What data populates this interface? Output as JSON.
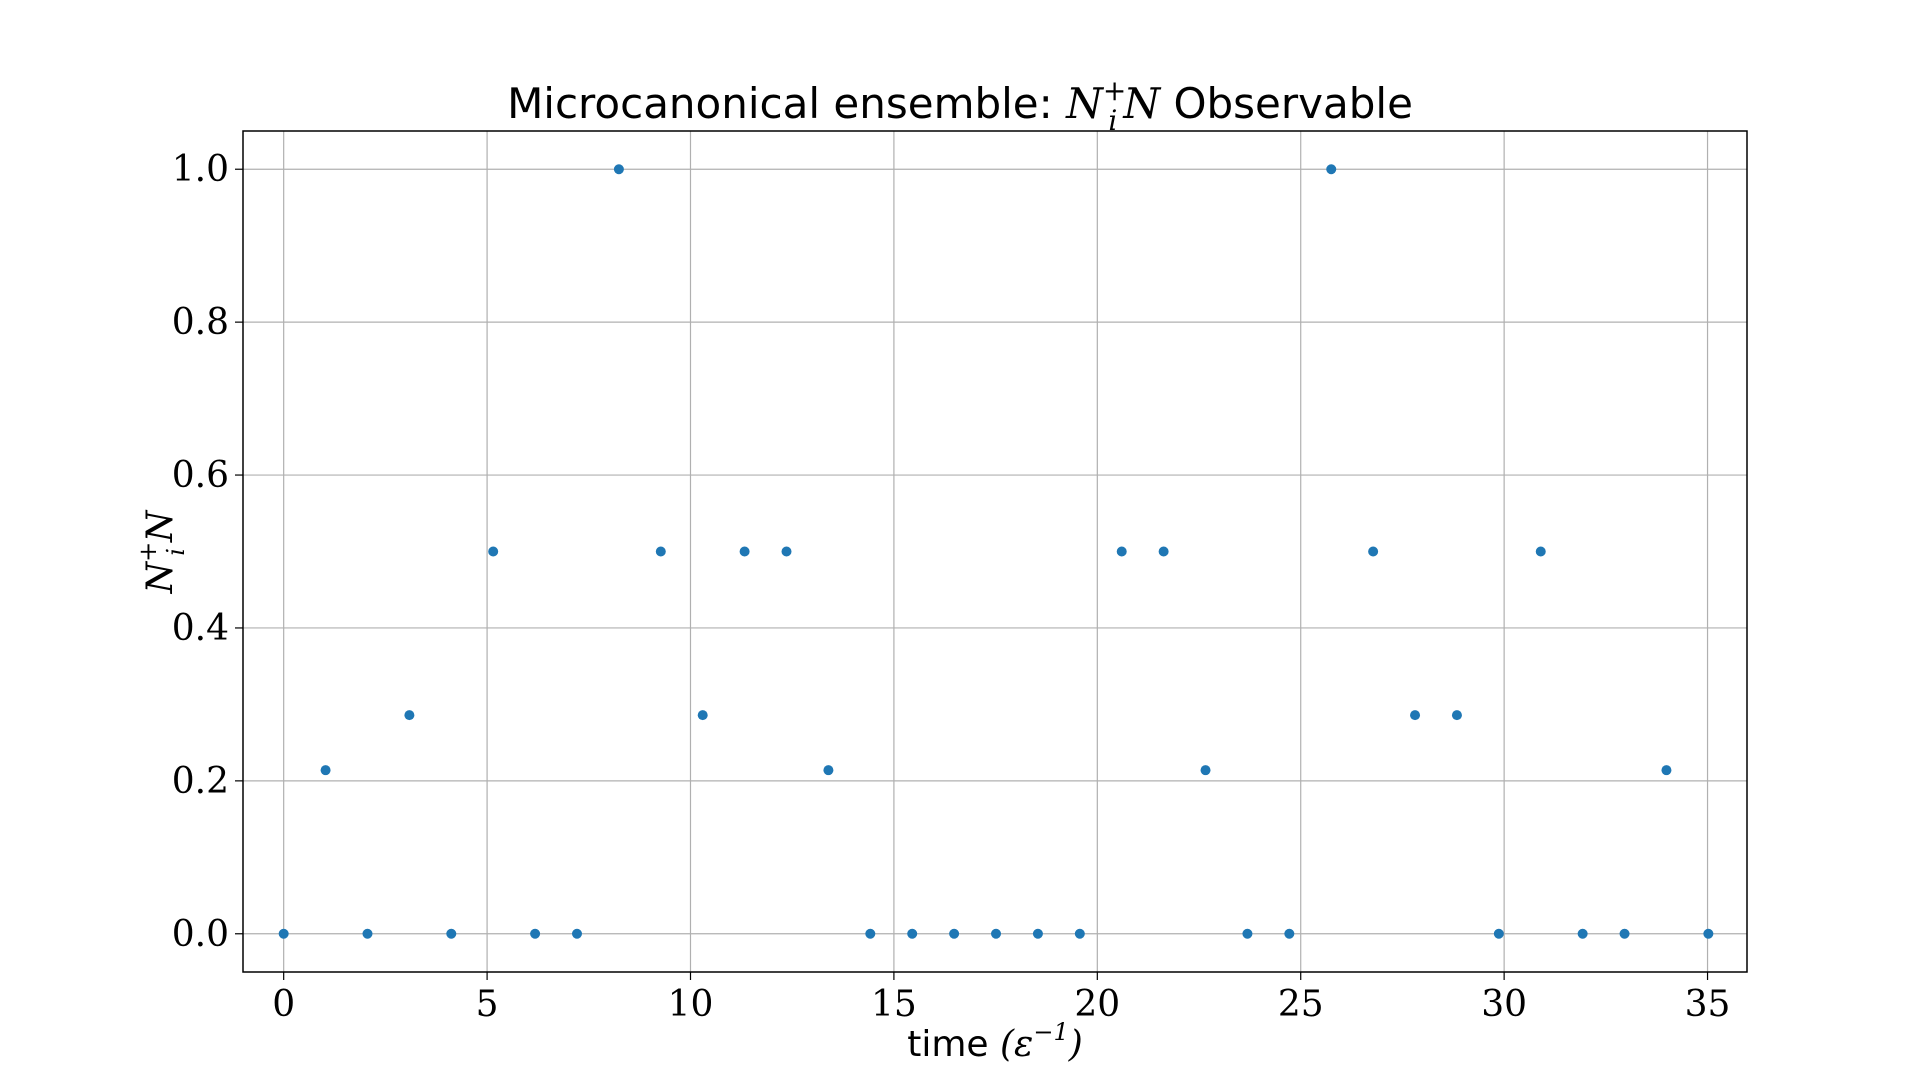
{
  "chart_data": {
    "type": "scatter",
    "title": {
      "prefix": "Microcanonical ensemble: ",
      "math_base": "N",
      "math_sub": "i",
      "math_sup": "+",
      "math_tail": "N",
      "suffix": " Observable"
    },
    "xlabel": {
      "text": "time ",
      "math_open": "(",
      "math_base": "ε",
      "math_sup": "−1",
      "math_close": ")"
    },
    "ylabel": {
      "math_base": "N",
      "math_sub": "i",
      "math_sup": "+",
      "math_tail": "N"
    },
    "xlim": [
      -1,
      35.97
    ],
    "ylim": [
      -0.05,
      1.05
    ],
    "xticks": [
      0,
      5,
      10,
      15,
      20,
      25,
      30,
      35
    ],
    "xtick_labels": [
      "0",
      "5",
      "10",
      "15",
      "20",
      "25",
      "30",
      "35"
    ],
    "yticks": [
      0.0,
      0.2,
      0.4,
      0.6,
      0.8,
      1.0
    ],
    "ytick_labels": [
      "0.0",
      "0.2",
      "0.4",
      "0.6",
      "0.8",
      "1.0"
    ],
    "grid": true,
    "marker_color": "#1f77b4",
    "series": [
      {
        "x": [
          0,
          1.03,
          2.06,
          3.09,
          4.12,
          5.15,
          6.18,
          7.21,
          8.24,
          9.27,
          10.3,
          11.33,
          12.36,
          13.39,
          14.42,
          15.45,
          16.48,
          17.51,
          18.54,
          19.57,
          20.6,
          21.63,
          22.66,
          23.69,
          24.72,
          25.75,
          26.78,
          27.81,
          28.84,
          29.87,
          30.9,
          31.93,
          32.96,
          33.99,
          35.02
        ],
        "y": [
          0.0,
          0.214,
          0.0,
          0.286,
          0.0,
          0.5,
          0.0,
          0.0,
          1.0,
          0.5,
          0.286,
          0.5,
          0.5,
          0.214,
          0.0,
          0.0,
          0.0,
          0.0,
          0.0,
          0.0,
          0.5,
          0.5,
          0.214,
          0.0,
          0.0,
          1.0,
          0.5,
          0.286,
          0.286,
          0.0,
          0.5,
          0.0,
          0.0,
          0.214,
          0.0
        ]
      }
    ]
  }
}
